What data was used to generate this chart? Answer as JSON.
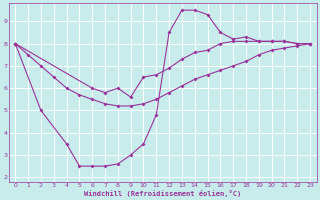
{
  "xlabel": "Windchill (Refroidissement éolien,°C)",
  "xlim": [
    -0.5,
    23.5
  ],
  "ylim": [
    1.8,
    9.8
  ],
  "yticks": [
    2,
    3,
    4,
    5,
    6,
    7,
    8,
    9
  ],
  "xticks": [
    0,
    1,
    2,
    3,
    4,
    5,
    6,
    7,
    8,
    9,
    10,
    11,
    12,
    13,
    14,
    15,
    16,
    17,
    18,
    19,
    20,
    21,
    22,
    23
  ],
  "bg_color": "#c8ecec",
  "grid_color": "#aadddd",
  "line_color": "#993399",
  "line1_x": [
    0,
    1,
    2,
    3,
    4,
    5,
    6,
    7,
    8,
    9,
    10,
    11,
    12,
    13,
    14,
    15,
    16,
    17,
    18,
    19,
    20,
    21,
    22,
    23
  ],
  "line1_y": [
    8.0,
    7.5,
    7.0,
    6.5,
    6.0,
    5.7,
    5.5,
    5.3,
    5.2,
    5.2,
    5.3,
    5.5,
    5.8,
    6.1,
    6.4,
    6.6,
    6.8,
    7.0,
    7.2,
    7.5,
    7.7,
    7.8,
    7.9,
    8.0
  ],
  "line2_x": [
    0,
    2,
    4,
    5,
    6,
    7,
    8,
    9,
    10,
    11,
    12,
    13,
    14,
    15,
    16,
    17,
    18,
    19,
    20,
    21,
    22,
    23
  ],
  "line2_y": [
    8.0,
    5.0,
    3.5,
    2.5,
    2.5,
    2.5,
    2.6,
    3.0,
    3.5,
    4.8,
    8.5,
    9.5,
    9.5,
    9.3,
    8.5,
    8.2,
    8.3,
    8.1,
    8.1,
    8.1,
    8.0,
    8.0
  ],
  "line3_x": [
    0,
    6,
    7,
    8,
    9,
    10,
    11,
    12,
    13,
    14,
    15,
    16,
    17,
    18,
    19,
    20,
    21,
    22,
    23
  ],
  "line3_y": [
    8.0,
    6.0,
    5.8,
    6.0,
    5.6,
    6.5,
    6.6,
    6.9,
    7.3,
    7.6,
    7.7,
    8.0,
    8.1,
    8.1,
    8.1,
    8.1,
    8.1,
    8.0,
    8.0
  ]
}
